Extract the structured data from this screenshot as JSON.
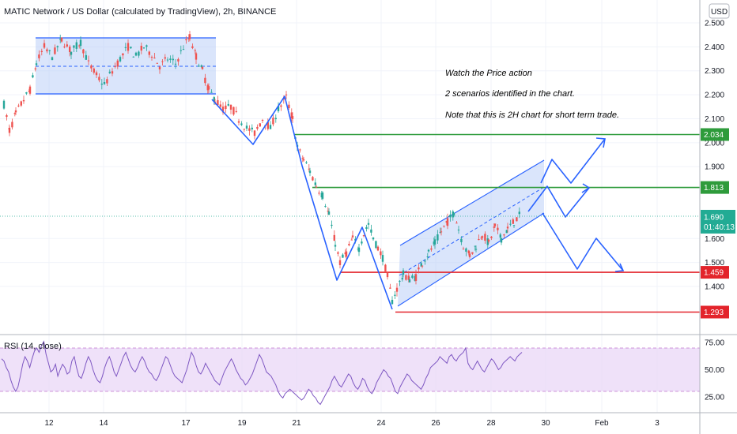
{
  "chart_data": {
    "type": "candlestick",
    "title": "MATIC Network / US Dollar (calculated by TradingView), 2h, BINANCE",
    "currency": "USD",
    "x_ticks": [
      "12",
      "14",
      "17",
      "19",
      "21",
      "24",
      "26",
      "28",
      "30",
      "Feb",
      "3"
    ],
    "y_ticks": [
      "2.500",
      "2.400",
      "2.300",
      "2.200",
      "2.100",
      "2.000",
      "1.900",
      "1.600",
      "1.500",
      "1.400"
    ],
    "ylim": [
      1.25,
      2.54
    ],
    "price_levels": [
      {
        "value": "2.034",
        "color": "#2e9b3b"
      },
      {
        "value": "1.813",
        "color": "#2e9b3b"
      },
      {
        "value": "1.459",
        "color": "#e3242b"
      },
      {
        "value": "1.293",
        "color": "#e3242b"
      }
    ],
    "last_price": {
      "value": "1.690",
      "countdown": "01:40:13",
      "color": "#22ab94"
    },
    "annotations": [
      "Watch the Price action",
      "2 scenarios identified in the chart.",
      "Note that this is 2H chart for short term trade."
    ],
    "rsi": {
      "label": "RSI (14, close)",
      "ticks": [
        "75.00",
        "50.00",
        "25.00"
      ],
      "upper": 70,
      "lower": 30,
      "ylim": [
        12,
        80
      ],
      "values": [
        60,
        58,
        52,
        48,
        40,
        34,
        30,
        34,
        44,
        55,
        62,
        58,
        52,
        60,
        67,
        70,
        66,
        72,
        76,
        64,
        56,
        48,
        50,
        55,
        44,
        50,
        55,
        52,
        46,
        48,
        58,
        62,
        52,
        44,
        42,
        48,
        56,
        62,
        58,
        50,
        44,
        40,
        38,
        44,
        52,
        58,
        62,
        56,
        48,
        44,
        50,
        56,
        62,
        66,
        60,
        54,
        50,
        48,
        52,
        58,
        62,
        58,
        52,
        48,
        46,
        42,
        40,
        44,
        50,
        56,
        62,
        60,
        54,
        48,
        44,
        42,
        40,
        38,
        44,
        50,
        58,
        66,
        62,
        54,
        48,
        46,
        50,
        56,
        52,
        48,
        44,
        40,
        38,
        36,
        42,
        48,
        52,
        56,
        60,
        56,
        50,
        46,
        42,
        40,
        36,
        38,
        42,
        46,
        52,
        58,
        64,
        60,
        54,
        48,
        46,
        44,
        40,
        36,
        30,
        26,
        24,
        28,
        30,
        32,
        30,
        28,
        26,
        24,
        22,
        24,
        28,
        32,
        30,
        26,
        24,
        20,
        18,
        22,
        26,
        30,
        34,
        40,
        44,
        40,
        36,
        34,
        38,
        42,
        46,
        44,
        38,
        34,
        32,
        36,
        42,
        40,
        34,
        30,
        28,
        32,
        38,
        42,
        46,
        50,
        48,
        44,
        42,
        36,
        30,
        28,
        34,
        38,
        42,
        46,
        44,
        40,
        38,
        36,
        34,
        32,
        36,
        42,
        46,
        52,
        54,
        56,
        58,
        62,
        60,
        58,
        56,
        62,
        64,
        60,
        58,
        62,
        64,
        66,
        70,
        56,
        52,
        50,
        54,
        58,
        54,
        50,
        48,
        52,
        56,
        60,
        58,
        54,
        50,
        52,
        56,
        58,
        60,
        62,
        60,
        58,
        62,
        64,
        66
      ]
    }
  }
}
